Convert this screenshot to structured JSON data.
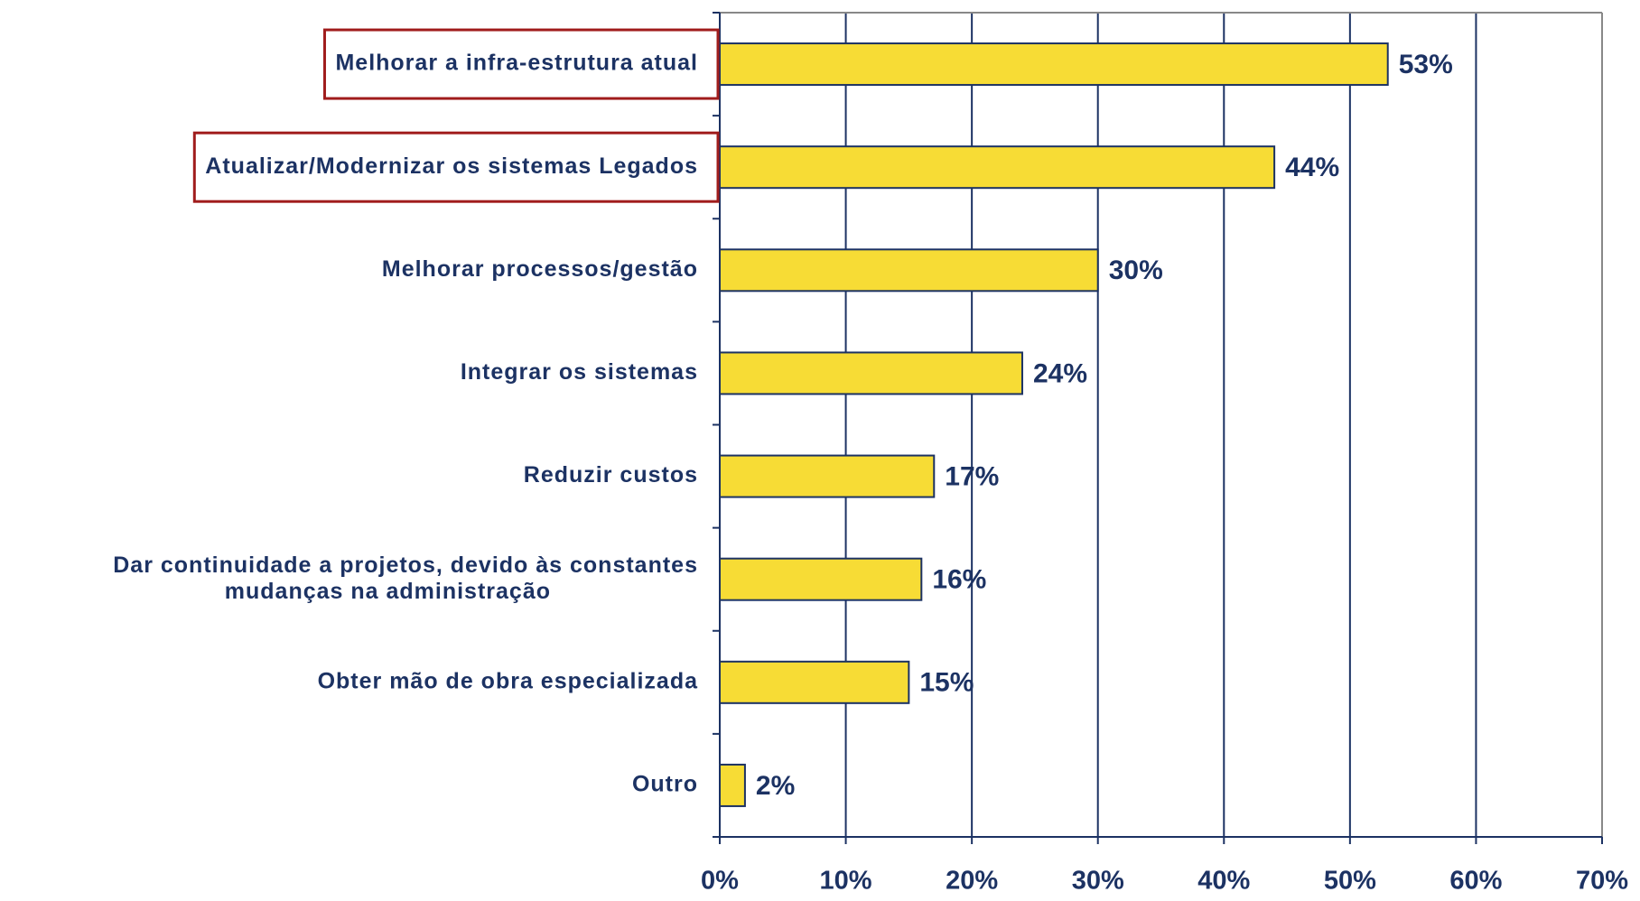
{
  "chart_data": {
    "type": "bar",
    "orientation": "horizontal",
    "categories": [
      "Melhorar a infra-estrutura atual",
      "Atualizar/Modernizar os sistemas Legados",
      "Melhorar processos/gestão",
      "Integrar os sistemas",
      "Reduzir custos",
      "Dar continuidade a projetos, devido às constantes\nmudanças na administração",
      "Obter mão de obra especializada",
      "Outro"
    ],
    "values": [
      53,
      44,
      30,
      24,
      17,
      16,
      15,
      2
    ],
    "value_labels": [
      "53%",
      "44%",
      "30%",
      "24%",
      "17%",
      "16%",
      "15%",
      "2%"
    ],
    "color": "#f7dc35",
    "highlighted_categories": [
      0,
      1
    ],
    "xlim": [
      0,
      70
    ],
    "xticks": [
      {
        "value": 0,
        "label": "0%"
      },
      {
        "value": 10,
        "label": "10%"
      },
      {
        "value": 20,
        "label": "20%"
      },
      {
        "value": 30,
        "label": "30%"
      },
      {
        "value": 40,
        "label": "40%"
      },
      {
        "value": 50,
        "label": "50%"
      },
      {
        "value": 60,
        "label": "60%"
      },
      {
        "value": 70,
        "label": "70%"
      }
    ],
    "grid": true
  }
}
